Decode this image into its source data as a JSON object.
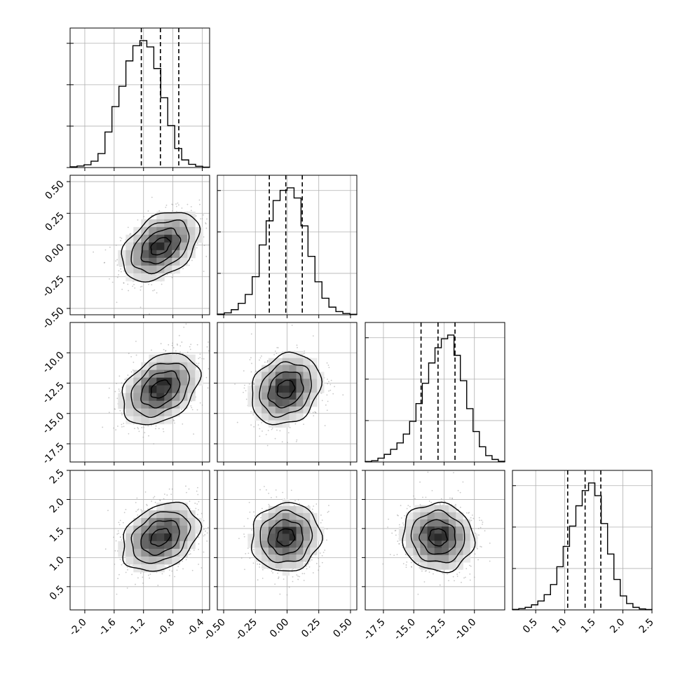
{
  "chart_data": {
    "type": "corner",
    "parameters": 4,
    "grid": true,
    "colors": {
      "line": "#000000",
      "grid": "#b0b0b0",
      "points": "#9a9a9a"
    },
    "params": [
      {
        "range": [
          -2.2,
          -0.3
        ],
        "ticks": [
          "-2.0",
          "-1.6",
          "-1.2",
          "-0.8",
          "-0.4"
        ],
        "tick_values": [
          -2.0,
          -1.6,
          -1.2,
          -0.8,
          -0.4
        ],
        "quantiles": [
          -1.23,
          -0.97,
          -0.72
        ],
        "mean": -0.97,
        "sd": 0.25,
        "hist_y_ticks": 3,
        "hist": [
          0.006,
          0.012,
          0.022,
          0.05,
          0.11,
          0.28,
          0.48,
          0.64,
          0.84,
          0.96,
          1.0,
          0.95,
          0.78,
          0.55,
          0.33,
          0.15,
          0.06,
          0.025,
          0.01,
          0.003
        ]
      },
      {
        "range": [
          -0.55,
          0.55
        ],
        "ticks": [
          "-0.50",
          "-0.25",
          "0.00",
          "0.25",
          "0.50"
        ],
        "tick_values": [
          -0.5,
          -0.25,
          0.0,
          0.25,
          0.5
        ],
        "quantiles": [
          -0.14,
          -0.01,
          0.12
        ],
        "mean": -0.01,
        "sd": 0.13,
        "hist_y_ticks": 3,
        "hist": [
          0.005,
          0.015,
          0.04,
          0.09,
          0.16,
          0.3,
          0.55,
          0.74,
          0.9,
          0.98,
          1.0,
          0.92,
          0.7,
          0.46,
          0.26,
          0.13,
          0.06,
          0.025,
          0.01,
          0.004
        ]
      },
      {
        "range": [
          -19.0,
          -7.5
        ],
        "ticks": [
          "-17.5",
          "-15.0",
          "-12.5",
          "-10.0"
        ],
        "tick_values": [
          -17.5,
          -15.0,
          -12.5,
          -10.0
        ],
        "quantiles": [
          -14.4,
          -13.0,
          -11.6
        ],
        "mean": -13.0,
        "sd": 1.4,
        "hist_y_ticks": 3,
        "hist": [
          0.004,
          0.01,
          0.03,
          0.06,
          0.1,
          0.15,
          0.22,
          0.32,
          0.46,
          0.62,
          0.78,
          0.9,
          0.97,
          1.0,
          0.84,
          0.64,
          0.42,
          0.24,
          0.12,
          0.05,
          0.02,
          0.005
        ]
      },
      {
        "range": [
          0.1,
          2.5
        ],
        "ticks": [
          "0.5",
          "1.0",
          "1.5",
          "2.0",
          "2.5"
        ],
        "tick_values": [
          0.5,
          1.0,
          1.5,
          2.0,
          2.5
        ],
        "quantiles": [
          1.05,
          1.35,
          1.62
        ],
        "mean": 1.35,
        "sd": 0.28,
        "hist_y_ticks": 3,
        "hist": [
          0.004,
          0.01,
          0.02,
          0.04,
          0.07,
          0.12,
          0.2,
          0.34,
          0.5,
          0.66,
          0.82,
          0.94,
          1.0,
          0.9,
          0.68,
          0.44,
          0.24,
          0.11,
          0.05,
          0.02,
          0.008,
          0.003
        ]
      }
    ],
    "correlations": {
      "1-0": 0.4,
      "2-0": 0.35,
      "2-1": 0.2,
      "3-0": 0.3,
      "3-1": 0.05,
      "3-2": -0.05
    },
    "contour_levels_sigma": [
      0.5,
      1.0,
      1.5,
      2.0
    ]
  }
}
